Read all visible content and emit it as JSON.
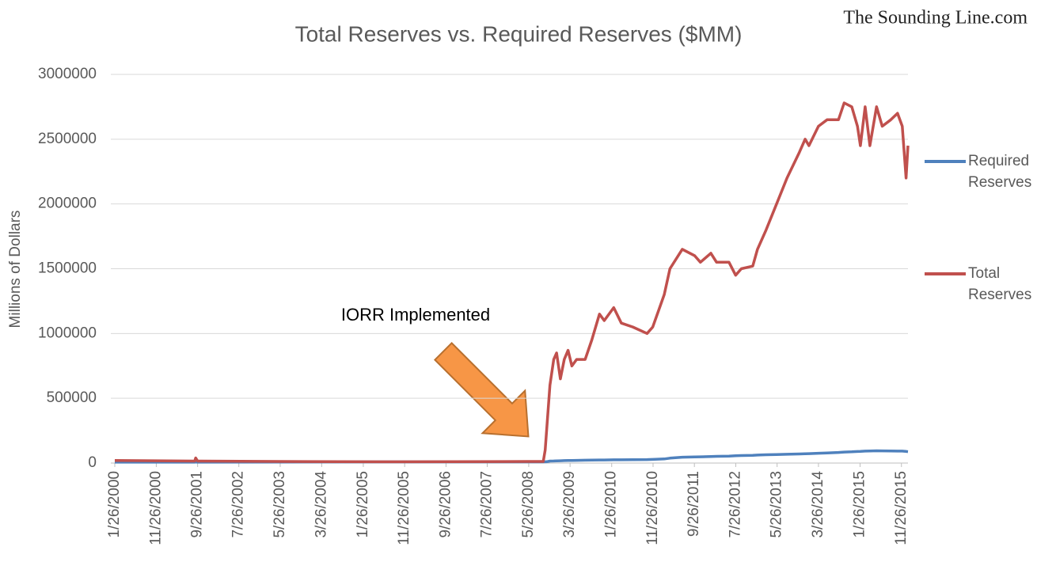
{
  "chart_data": {
    "type": "line",
    "title": "Total Reserves vs. Required Reserves ($MM)",
    "watermark": "The Sounding Line.com",
    "y_label": "Millions of Dollars",
    "annotation": "IORR Implemented",
    "x": [
      "1/26/2000",
      "9/5/2001",
      "9/12/2001",
      "9/26/2001",
      "5/26/2003",
      "5/26/2005",
      "5/26/2008",
      "9/10/2008",
      "9/24/2008",
      "10/1/2008",
      "10/15/2008",
      "10/29/2008",
      "11/26/2008",
      "12/17/2008",
      "1/14/2009",
      "2/11/2009",
      "3/11/2009",
      "4/8/2009",
      "5/13/2009",
      "7/15/2009",
      "9/2/2009",
      "10/28/2009",
      "12/2/2009",
      "2/10/2010",
      "4/7/2010",
      "6/30/2010",
      "10/13/2010",
      "11/24/2010",
      "2/16/2011",
      "3/30/2011",
      "6/29/2011",
      "9/28/2011",
      "11/9/2011",
      "1/25/2012",
      "3/7/2012",
      "6/6/2012",
      "7/25/2012",
      "9/5/2012",
      "11/28/2012",
      "1/2/2013",
      "3/6/2013",
      "5/22/2013",
      "8/7/2013",
      "11/6/2013",
      "12/18/2013",
      "1/15/2014",
      "3/26/2014",
      "5/28/2014",
      "8/20/2014",
      "10/1/2014",
      "11/26/2014",
      "1/7/2015",
      "1/28/2015",
      "3/4/2015",
      "4/8/2015",
      "5/27/2015",
      "7/8/2015",
      "9/9/2015",
      "10/28/2015",
      "12/2/2015",
      "12/30/2015",
      "1/13/2016"
    ],
    "series": [
      {
        "name": "Required Reserves",
        "color": "#4f81bd",
        "values": [
          7000,
          7000,
          8000,
          7000,
          8000,
          9000,
          9000,
          9000,
          10000,
          10000,
          12000,
          15000,
          16000,
          17000,
          18000,
          19000,
          20000,
          20000,
          21000,
          22000,
          23000,
          24000,
          24000,
          25000,
          25000,
          26000,
          27000,
          28000,
          32000,
          38000,
          45000,
          47000,
          48000,
          50000,
          52000,
          54000,
          56000,
          58000,
          60000,
          62000,
          64000,
          66000,
          68000,
          70000,
          72000,
          73000,
          76000,
          78000,
          82000,
          85000,
          87000,
          89000,
          90000,
          92000,
          93000,
          95000,
          94000,
          93000,
          92000,
          92000,
          90000,
          88000
        ]
      },
      {
        "name": "Total Reserves",
        "color": "#c0504d",
        "values": [
          20000,
          15000,
          40000,
          15000,
          12000,
          10000,
          12000,
          12000,
          100000,
          200000,
          400000,
          600000,
          800000,
          850000,
          650000,
          800000,
          870000,
          750000,
          800000,
          800000,
          950000,
          1150000,
          1100000,
          1200000,
          1080000,
          1050000,
          1000000,
          1050000,
          1300000,
          1500000,
          1650000,
          1600000,
          1550000,
          1620000,
          1550000,
          1550000,
          1450000,
          1500000,
          1520000,
          1650000,
          1800000,
          2000000,
          2200000,
          2400000,
          2500000,
          2450000,
          2600000,
          2650000,
          2650000,
          2780000,
          2750000,
          2600000,
          2450000,
          2750000,
          2450000,
          2750000,
          2600000,
          2650000,
          2700000,
          2600000,
          2200000,
          2450000
        ]
      }
    ],
    "xlim": [
      "1/26/2000",
      "1/13/2016"
    ],
    "xticks": [
      "1/26/2000",
      "11/26/2000",
      "9/26/2001",
      "7/26/2002",
      "5/26/2003",
      "3/26/2004",
      "1/26/2005",
      "11/26/2005",
      "9/26/2006",
      "7/26/2007",
      "5/26/2008",
      "3/26/2009",
      "1/26/2010",
      "11/26/2010",
      "9/26/2011",
      "7/26/2012",
      "5/26/2013",
      "3/26/2014",
      "1/26/2015",
      "11/26/2015"
    ],
    "ylim": [
      0,
      3000000
    ],
    "yticks": [
      0,
      500000,
      1000000,
      1500000,
      2000000,
      2500000,
      3000000
    ],
    "grid": true,
    "legend": "right"
  }
}
